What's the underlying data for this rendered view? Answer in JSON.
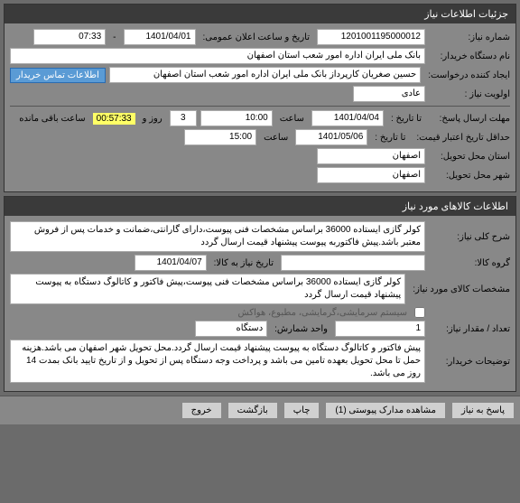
{
  "panel1": {
    "title": "جزئیات اطلاعات نیاز",
    "need_number_label": "شماره نیاز:",
    "need_number": "1201001195000012",
    "announce_label": "تاریخ و ساعت اعلان عمومی:",
    "announce_date": "1401/04/01",
    "announce_time": "07:33",
    "buyer_label": "نام دستگاه خریدار:",
    "buyer": "بانک ملی ایران اداره امور شعب استان اصفهان",
    "creator_label": "ایجاد کننده درخواست:",
    "creator": "حسین صغریان کارپرداز بانک ملی ایران اداره امور شعب استان اصفهان",
    "contact_btn": "اطلاعات تماس خریدار",
    "priority_label": "اولویت نیاز :",
    "priority": "عادی",
    "deadline_label": "مهلت ارسال پاسخ:",
    "deadline_to_label": "تا تاریخ :",
    "deadline_date": "1401/04/04",
    "deadline_time_label": "ساعت",
    "deadline_time": "10:00",
    "days": "3",
    "days_label": "روز و",
    "countdown": "00:57:33",
    "countdown_label": "ساعت باقی مانده",
    "validity_label": "حداقل تاریخ اعتبار قیمت:",
    "validity_to_label": "تا تاریخ :",
    "validity_date": "1401/05/06",
    "validity_time_label": "ساعت",
    "validity_time": "15:00",
    "province_label": "استان محل تحویل:",
    "province": "اصفهان",
    "city_label": "شهر محل تحویل:",
    "city": "اصفهان"
  },
  "panel2": {
    "title": "اطلاعات کالاهای مورد نیاز",
    "desc_label": "شرح کلی نیاز:",
    "desc": "کولر گازی ایستاده 36000 براساس مشخصات فنی پیوست،دارای گارانتی،ضمانت و خدمات پس از فروش معتبر باشد.پیش فاکتوربه پیوست پیشنهاد قیمت ارسال گردد",
    "group_label": "گروه کالا:",
    "group": "",
    "group_check_label": "لوازم خانگی برقی",
    "need_date_label": "تاریخ نیاز به کالا:",
    "need_date": "1401/04/07",
    "spec_label": "مشخصات کالای مورد نیاز:",
    "spec": "کولر گازی ایستاده 36000 براساس مشخصات فنی پیوست،پیش فاکتور و کاتالوگ دستگاه به پیوست پیشنهاد قیمت ارسال گردد",
    "extra_check_label": "سیستم سرمایشی،گرمایشی، مطبوع، هواکش",
    "qty_label": "تعداد / مقدار نیاز:",
    "qty": "1",
    "unit_label": "واحد شمارش:",
    "unit": "دستگاه",
    "notes_label": "توضیحات خریدار:",
    "notes": "پیش فاکتور و کاتالوگ دستگاه به پیوست پیشنهاد قیمت ارسال گردد.محل تحویل شهر اصفهان می باشد.هزینه حمل تا محل تحویل بعهده تامین می باشد و پرداخت وجه دستگاه پس از تحویل و از تاریخ تایید بانک بمدت 14 روز می باشد."
  },
  "footer": {
    "respond": "پاسخ به نیاز",
    "attachments": "مشاهده مدارک پیوستی (1)",
    "print": "چاپ",
    "back": "بازگشت",
    "exit": "خروج"
  },
  "colors": {
    "bg": "#6b6b6b",
    "panel_bg": "#888",
    "header_bg": "#3a3a3a",
    "field_bg": "#ffffff",
    "btn_link": "#5a9bd5",
    "highlight": "#ffff66"
  }
}
